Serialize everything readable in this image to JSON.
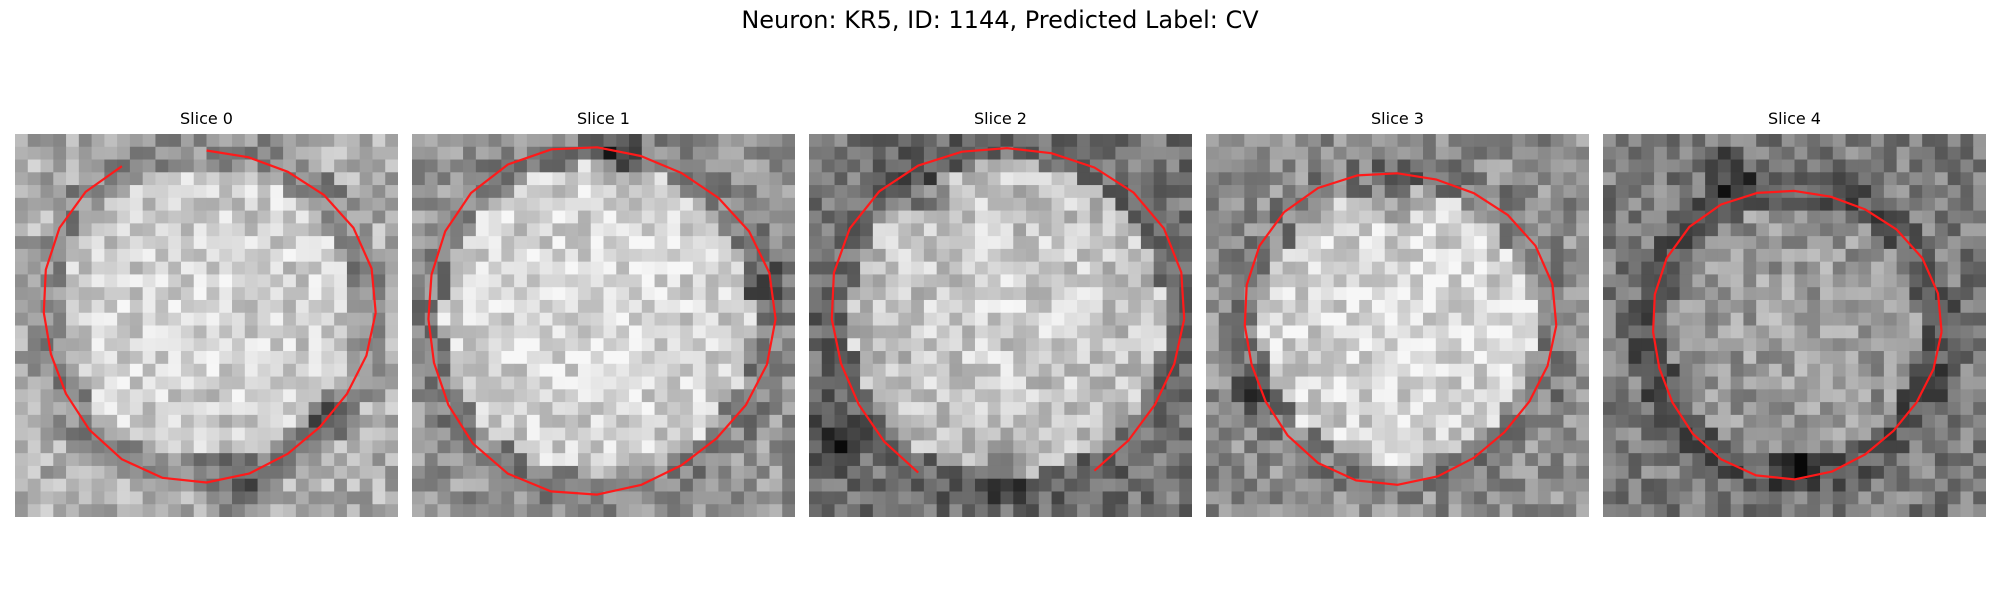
{
  "figure": {
    "title": "Neuron: KR5, ID: 1144, Predicted Label: CV"
  },
  "slices": [
    {
      "title": "Slice 0"
    },
    {
      "title": "Slice 1"
    },
    {
      "title": "Slice 2"
    },
    {
      "title": "Slice 3"
    },
    {
      "title": "Slice 4"
    }
  ],
  "colors": {
    "contour": "#ff1a1a",
    "background": "#ffffff"
  }
}
